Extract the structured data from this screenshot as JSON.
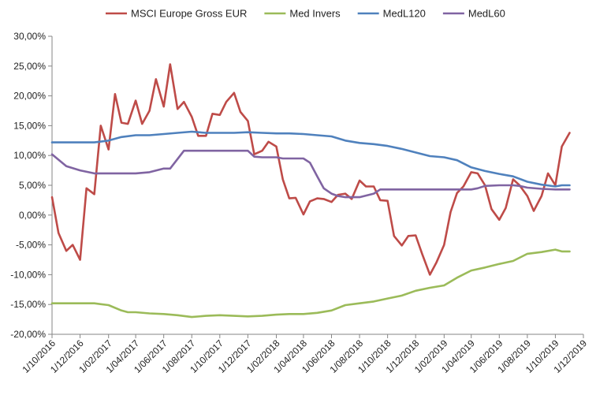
{
  "chart_data": {
    "type": "line",
    "title": "",
    "xlabel": "",
    "ylabel": "",
    "x_tick_labels": [
      "1/10/2016",
      "1/12/2016",
      "1/02/2017",
      "1/04/2017",
      "1/06/2017",
      "1/08/2017",
      "1/10/2017",
      "1/12/2017",
      "1/02/2018",
      "1/04/2018",
      "1/06/2018",
      "1/08/2018",
      "1/10/2018",
      "1/12/2018",
      "1/02/2019",
      "1/04/2019",
      "1/06/2019",
      "1/08/2019",
      "1/10/2019",
      "1/12/2019"
    ],
    "y_tick_labels": [
      "30,00%",
      "25,00%",
      "20,00%",
      "15,00%",
      "10,00%",
      "5,00%",
      "0,00%",
      "-5,00%",
      "-10,00%",
      "-15,00%",
      "-20,00%"
    ],
    "ylim": [
      -20,
      30
    ],
    "y_ticks": [
      30,
      25,
      20,
      15,
      10,
      5,
      0,
      -5,
      -10,
      -15,
      -20
    ],
    "xlim": [
      "1/10/2016",
      "1/12/2019"
    ],
    "grid": false,
    "legend_position": "top",
    "series": [
      {
        "name": "MSCI Europe Gross EUR",
        "color": "#be4b48",
        "points": [
          [
            "1/10/2016",
            3
          ],
          [
            "15/10/2016",
            -3
          ],
          [
            "1/11/2016",
            -6
          ],
          [
            "15/11/2016",
            -5
          ],
          [
            "1/12/2016",
            -7.5
          ],
          [
            "15/12/2016",
            4.5
          ],
          [
            "1/01/2017",
            3.5
          ],
          [
            "15/01/2017",
            15
          ],
          [
            "1/02/2017",
            11
          ],
          [
            "15/02/2017",
            20.3
          ],
          [
            "1/03/2017",
            15.5
          ],
          [
            "15/03/2017",
            15.3
          ],
          [
            "1/04/2017",
            19.2
          ],
          [
            "15/04/2017",
            15.3
          ],
          [
            "1/05/2017",
            17.5
          ],
          [
            "15/05/2017",
            22.8
          ],
          [
            "1/06/2017",
            18.2
          ],
          [
            "15/06/2017",
            25.3
          ],
          [
            "1/07/2017",
            17.8
          ],
          [
            "15/07/2017",
            19
          ],
          [
            "1/08/2017",
            16.5
          ],
          [
            "15/08/2017",
            13.3
          ],
          [
            "1/09/2017",
            13.3
          ],
          [
            "15/09/2017",
            17
          ],
          [
            "1/10/2017",
            16.8
          ],
          [
            "15/10/2017",
            19
          ],
          [
            "1/11/2017",
            20.5
          ],
          [
            "15/11/2017",
            17.3
          ],
          [
            "1/12/2017",
            15.8
          ],
          [
            "15/12/2017",
            10.2
          ],
          [
            "1/01/2018",
            10.8
          ],
          [
            "15/01/2018",
            12.3
          ],
          [
            "1/02/2018",
            11.5
          ],
          [
            "15/02/2018",
            6
          ],
          [
            "1/03/2018",
            2.8
          ],
          [
            "15/03/2018",
            2.9
          ],
          [
            "1/04/2018",
            0.1
          ],
          [
            "15/04/2018",
            2.3
          ],
          [
            "1/05/2018",
            2.8
          ],
          [
            "15/05/2018",
            2.7
          ],
          [
            "1/06/2018",
            2.2
          ],
          [
            "15/06/2018",
            3.4
          ],
          [
            "1/07/2018",
            3.6
          ],
          [
            "15/07/2018",
            2.7
          ],
          [
            "1/08/2018",
            5.8
          ],
          [
            "15/08/2018",
            4.8
          ],
          [
            "1/09/2018",
            4.8
          ],
          [
            "15/09/2018",
            2.5
          ],
          [
            "1/10/2018",
            2.4
          ],
          [
            "15/10/2018",
            -3.5
          ],
          [
            "1/11/2018",
            -5.1
          ],
          [
            "15/11/2018",
            -3.5
          ],
          [
            "1/12/2018",
            -3.4
          ],
          [
            "15/12/2018",
            -6.5
          ],
          [
            "1/01/2019",
            -10
          ],
          [
            "15/01/2019",
            -8
          ],
          [
            "1/02/2019",
            -5
          ],
          [
            "15/02/2019",
            0.5
          ],
          [
            "1/03/2019",
            3.7
          ],
          [
            "15/03/2019",
            4.8
          ],
          [
            "1/04/2019",
            7.2
          ],
          [
            "15/04/2019",
            7
          ],
          [
            "1/05/2019",
            5
          ],
          [
            "15/05/2019",
            1
          ],
          [
            "1/06/2019",
            -0.8
          ],
          [
            "15/06/2019",
            1.2
          ],
          [
            "1/07/2019",
            6
          ],
          [
            "15/07/2019",
            5
          ],
          [
            "1/08/2019",
            3.2
          ],
          [
            "15/08/2019",
            0.7
          ],
          [
            "1/09/2019",
            3.2
          ],
          [
            "15/09/2019",
            7
          ],
          [
            "1/10/2019",
            5
          ],
          [
            "15/10/2019",
            11.5
          ],
          [
            "1/11/2019",
            13.8
          ]
        ]
      },
      {
        "name": "Med Invers",
        "color": "#9bbb59",
        "points": [
          [
            "1/10/2016",
            -14.8
          ],
          [
            "1/12/2016",
            -14.8
          ],
          [
            "1/01/2017",
            -14.8
          ],
          [
            "1/02/2017",
            -15.1
          ],
          [
            "1/03/2017",
            -16
          ],
          [
            "15/03/2017",
            -16.3
          ],
          [
            "1/04/2017",
            -16.3
          ],
          [
            "1/05/2017",
            -16.5
          ],
          [
            "1/06/2017",
            -16.6
          ],
          [
            "1/07/2017",
            -16.8
          ],
          [
            "1/08/2017",
            -17.1
          ],
          [
            "1/09/2017",
            -16.9
          ],
          [
            "1/10/2017",
            -16.8
          ],
          [
            "1/11/2017",
            -16.9
          ],
          [
            "1/12/2017",
            -17
          ],
          [
            "1/01/2018",
            -16.9
          ],
          [
            "1/02/2018",
            -16.7
          ],
          [
            "1/03/2018",
            -16.6
          ],
          [
            "1/04/2018",
            -16.6
          ],
          [
            "1/05/2018",
            -16.4
          ],
          [
            "1/06/2018",
            -16
          ],
          [
            "1/07/2018",
            -15.1
          ],
          [
            "1/08/2018",
            -14.8
          ],
          [
            "1/09/2018",
            -14.5
          ],
          [
            "1/10/2018",
            -14
          ],
          [
            "1/11/2018",
            -13.5
          ],
          [
            "1/12/2018",
            -12.7
          ],
          [
            "1/01/2019",
            -12.2
          ],
          [
            "1/02/2019",
            -11.8
          ],
          [
            "1/03/2019",
            -10.5
          ],
          [
            "1/04/2019",
            -9.3
          ],
          [
            "1/05/2019",
            -8.8
          ],
          [
            "1/06/2019",
            -8.2
          ],
          [
            "1/07/2019",
            -7.7
          ],
          [
            "1/08/2019",
            -6.5
          ],
          [
            "1/09/2019",
            -6.2
          ],
          [
            "1/10/2019",
            -5.8
          ],
          [
            "15/10/2019",
            -6.1
          ],
          [
            "1/11/2019",
            -6.1
          ]
        ]
      },
      {
        "name": "MedL120",
        "color": "#4f81bd",
        "points": [
          [
            "1/10/2016",
            12.2
          ],
          [
            "1/01/2017",
            12.2
          ],
          [
            "1/02/2017",
            12.5
          ],
          [
            "1/03/2017",
            13.1
          ],
          [
            "1/04/2017",
            13.4
          ],
          [
            "1/05/2017",
            13.4
          ],
          [
            "1/06/2017",
            13.6
          ],
          [
            "1/07/2017",
            13.8
          ],
          [
            "1/08/2017",
            14
          ],
          [
            "1/09/2017",
            13.8
          ],
          [
            "1/10/2017",
            13.8
          ],
          [
            "1/11/2017",
            13.8
          ],
          [
            "1/12/2017",
            13.9
          ],
          [
            "1/01/2018",
            13.8
          ],
          [
            "1/02/2018",
            13.7
          ],
          [
            "1/03/2018",
            13.7
          ],
          [
            "1/04/2018",
            13.6
          ],
          [
            "1/05/2018",
            13.4
          ],
          [
            "1/06/2018",
            13.2
          ],
          [
            "1/07/2018",
            12.5
          ],
          [
            "1/08/2018",
            12.1
          ],
          [
            "1/09/2018",
            11.9
          ],
          [
            "1/10/2018",
            11.6
          ],
          [
            "1/11/2018",
            11.1
          ],
          [
            "1/12/2018",
            10.5
          ],
          [
            "1/01/2019",
            9.9
          ],
          [
            "1/02/2019",
            9.7
          ],
          [
            "1/03/2019",
            9.2
          ],
          [
            "1/04/2019",
            8
          ],
          [
            "1/05/2019",
            7.4
          ],
          [
            "1/06/2019",
            6.9
          ],
          [
            "1/07/2019",
            6.5
          ],
          [
            "1/08/2019",
            5.6
          ],
          [
            "1/09/2019",
            5.1
          ],
          [
            "1/10/2019",
            4.8
          ],
          [
            "15/10/2019",
            5
          ],
          [
            "1/11/2019",
            5
          ]
        ]
      },
      {
        "name": "MedL60",
        "color": "#8064a2",
        "points": [
          [
            "1/10/2016",
            10.2
          ],
          [
            "1/11/2016",
            8.2
          ],
          [
            "1/12/2016",
            7.5
          ],
          [
            "1/01/2017",
            7
          ],
          [
            "1/02/2017",
            7
          ],
          [
            "1/03/2017",
            7
          ],
          [
            "1/04/2017",
            7
          ],
          [
            "1/05/2017",
            7.2
          ],
          [
            "1/06/2017",
            7.8
          ],
          [
            "15/06/2017",
            7.8
          ],
          [
            "1/07/2017",
            9.4
          ],
          [
            "15/07/2017",
            10.8
          ],
          [
            "1/08/2017",
            10.8
          ],
          [
            "1/09/2017",
            10.8
          ],
          [
            "1/10/2017",
            10.8
          ],
          [
            "1/11/2017",
            10.8
          ],
          [
            "1/12/2017",
            10.8
          ],
          [
            "15/12/2017",
            9.8
          ],
          [
            "1/01/2018",
            9.7
          ],
          [
            "1/02/2018",
            9.7
          ],
          [
            "15/02/2018",
            9.5
          ],
          [
            "1/03/2018",
            9.5
          ],
          [
            "1/04/2018",
            9.5
          ],
          [
            "15/04/2018",
            8.8
          ],
          [
            "1/05/2018",
            6.5
          ],
          [
            "15/05/2018",
            4.5
          ],
          [
            "1/06/2018",
            3.6
          ],
          [
            "15/06/2018",
            3.2
          ],
          [
            "1/07/2018",
            3
          ],
          [
            "1/08/2018",
            3
          ],
          [
            "1/09/2018",
            3.6
          ],
          [
            "15/09/2018",
            4.3
          ],
          [
            "1/10/2018",
            4.3
          ],
          [
            "1/11/2018",
            4.3
          ],
          [
            "1/12/2018",
            4.3
          ],
          [
            "1/01/2019",
            4.3
          ],
          [
            "1/02/2019",
            4.3
          ],
          [
            "1/03/2019",
            4.3
          ],
          [
            "1/04/2019",
            4.3
          ],
          [
            "15/04/2019",
            4.5
          ],
          [
            "1/05/2019",
            4.9
          ],
          [
            "1/06/2019",
            5
          ],
          [
            "1/07/2019",
            5
          ],
          [
            "15/07/2019",
            4.9
          ],
          [
            "1/08/2019",
            4.6
          ],
          [
            "1/09/2019",
            4.4
          ],
          [
            "1/10/2019",
            4.3
          ],
          [
            "1/11/2019",
            4.3
          ]
        ]
      }
    ]
  }
}
